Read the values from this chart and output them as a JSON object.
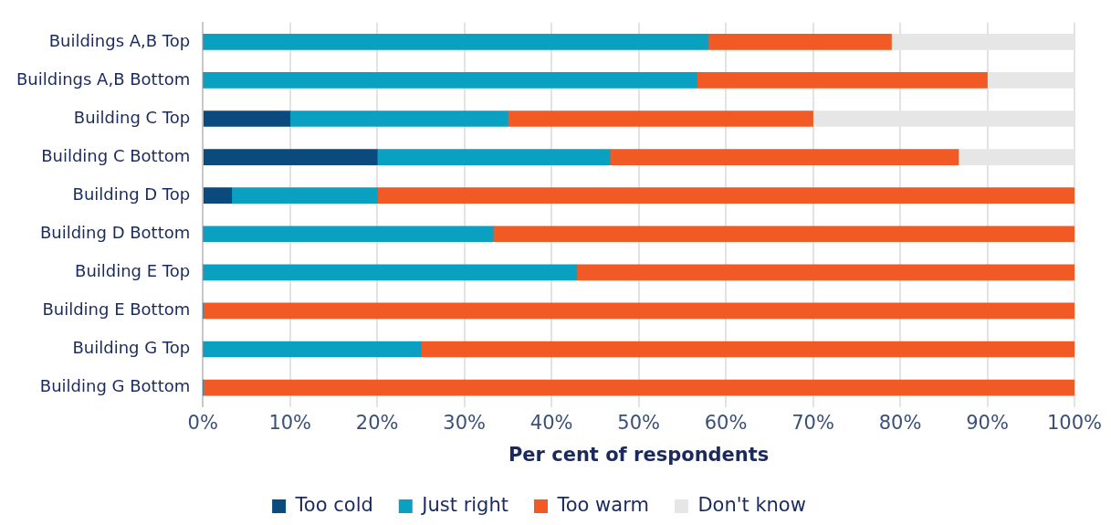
{
  "chart_data": {
    "type": "bar",
    "orientation": "horizontal",
    "stacked": true,
    "xlabel": "Per cent of respondents",
    "categories": [
      "Buildings A,B Top",
      "Buildings A,B Bottom",
      "Building C Top",
      "Building C Bottom",
      "Building D Top",
      "Building D Bottom",
      "Building E Top",
      "Building E Bottom",
      "Building G Top",
      "Building G Bottom"
    ],
    "series": [
      {
        "name": "Too cold",
        "color": "#0b4a7d",
        "values": [
          0,
          0,
          10,
          20,
          3.3,
          0,
          0,
          0,
          0,
          0
        ]
      },
      {
        "name": "Just right",
        "color": "#0aa0c1",
        "values": [
          58,
          56.7,
          25,
          26.7,
          16.7,
          33.3,
          42.9,
          0,
          25,
          0
        ]
      },
      {
        "name": "Too warm",
        "color": "#f15a24",
        "values": [
          21,
          33.3,
          35,
          40,
          80,
          66.7,
          57.1,
          100,
          75,
          100
        ]
      },
      {
        "name": "Don't know",
        "color": "#e6e6e6",
        "values": [
          21,
          10,
          30,
          13.3,
          0,
          0,
          0,
          0,
          0,
          0
        ]
      }
    ],
    "xlim": [
      0,
      100
    ],
    "xticks": [
      {
        "value": 0,
        "label": "0%"
      },
      {
        "value": 10,
        "label": "10%"
      },
      {
        "value": 20,
        "label": "20%"
      },
      {
        "value": 30,
        "label": "30%"
      },
      {
        "value": 40,
        "label": "40%"
      },
      {
        "value": 50,
        "label": "50%"
      },
      {
        "value": 60,
        "label": "60%"
      },
      {
        "value": 70,
        "label": "70%"
      },
      {
        "value": 80,
        "label": "80%"
      },
      {
        "value": 90,
        "label": "90%"
      },
      {
        "value": 100,
        "label": "100%"
      }
    ],
    "grid": "x",
    "legend": "bottom"
  }
}
